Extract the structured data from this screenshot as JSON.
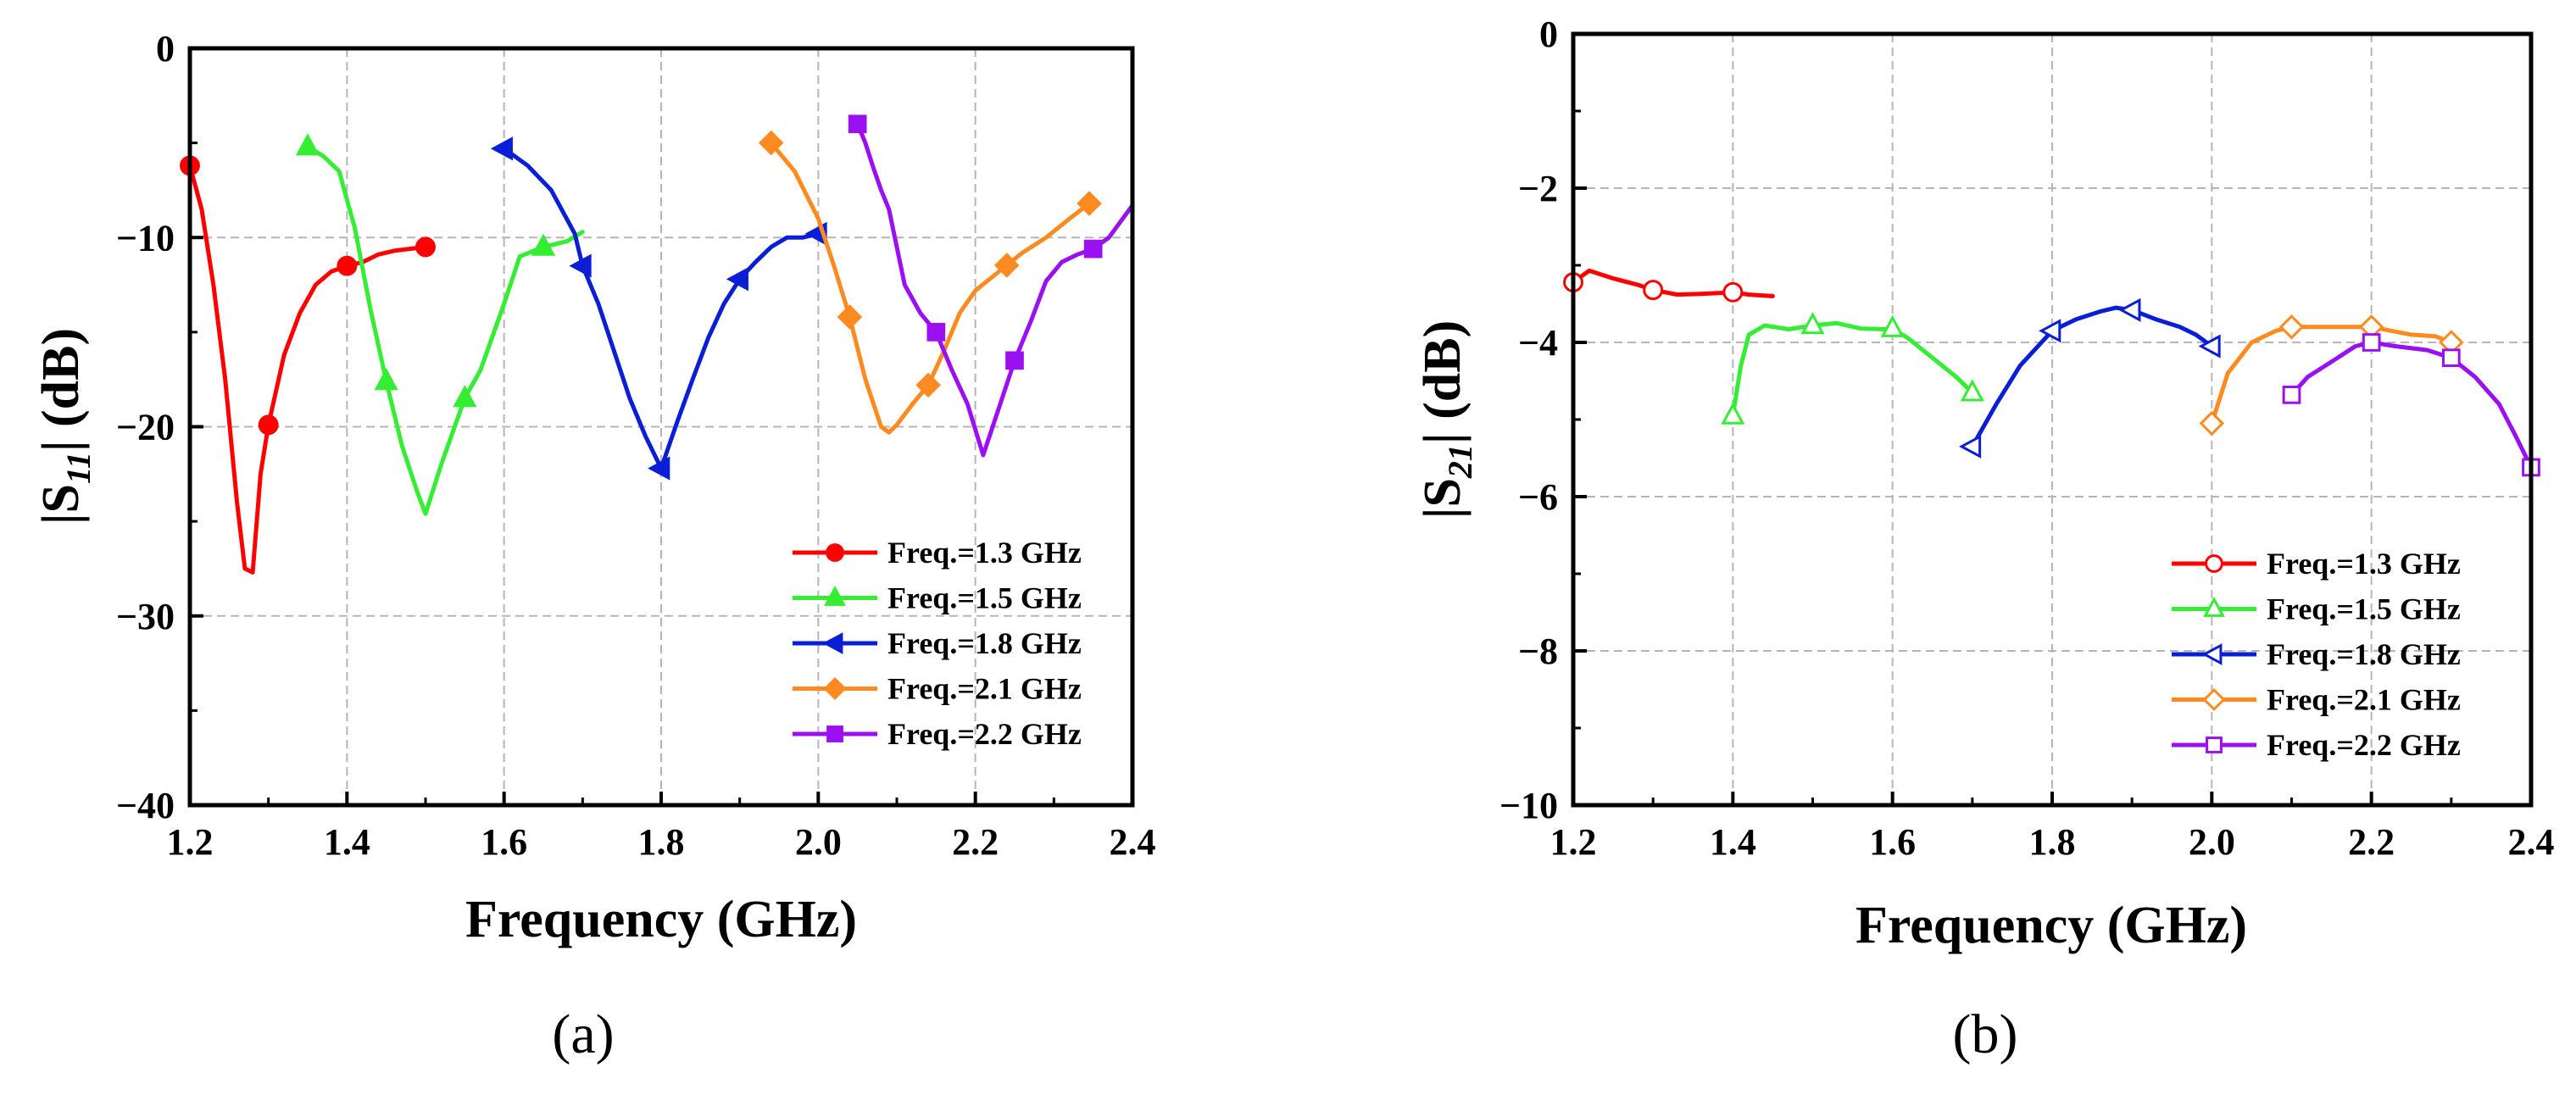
{
  "figure": {
    "legend_colors": {
      "f13": "#ff0000",
      "f15": "#33ee33",
      "f18": "#0a1ed6",
      "f21": "#ff8a1f",
      "f22": "#9a10f0"
    }
  },
  "chart_data": [
    {
      "type": "line",
      "panel_label": "(a)",
      "xlabel": "Frequency (GHz)",
      "ylabel": "|S11| (dB)",
      "ylabel_parts": {
        "pre": "|S",
        "sub": "11",
        "post": "| (dB)"
      },
      "xlim": [
        1.2,
        2.4
      ],
      "ylim": [
        -40,
        0
      ],
      "xticks": [
        1.2,
        1.4,
        1.6,
        1.8,
        2.0,
        2.2,
        2.4
      ],
      "xtick_labels": [
        "1.2",
        "1.4",
        "1.6",
        "1.8",
        "2.0",
        "2.2",
        "2.4"
      ],
      "yticks": [
        0,
        -10,
        -20,
        -30,
        -40
      ],
      "ytick_labels": [
        "0",
        "−10",
        "−20",
        "−30",
        "−40"
      ],
      "grid": true,
      "legend_position": "bottom-right",
      "series": [
        {
          "name": "Freq.=1.3 GHz",
          "color": "#ff0000",
          "marker": "circle",
          "filled": true,
          "x": [
            1.2,
            1.215,
            1.23,
            1.245,
            1.26,
            1.27,
            1.28,
            1.29,
            1.3,
            1.32,
            1.34,
            1.36,
            1.38,
            1.4,
            1.42,
            1.44,
            1.46,
            1.48,
            1.5
          ],
          "y": [
            -6.2,
            -8.5,
            -12.5,
            -17.5,
            -24,
            -27.5,
            -27.7,
            -22.5,
            -19.9,
            -16.2,
            -14,
            -12.5,
            -11.8,
            -11.5,
            -11.3,
            -10.9,
            -10.7,
            -10.6,
            -10.5
          ],
          "markers_x": [
            1.2,
            1.3,
            1.4,
            1.5
          ]
        },
        {
          "name": "Freq.=1.5 GHz",
          "color": "#33ee33",
          "marker": "triangle",
          "filled": true,
          "x": [
            1.35,
            1.37,
            1.39,
            1.41,
            1.43,
            1.45,
            1.47,
            1.49,
            1.5,
            1.52,
            1.55,
            1.57,
            1.6,
            1.62,
            1.65,
            1.68,
            1.7
          ],
          "y": [
            -5.2,
            -5.7,
            -6.5,
            -9.5,
            -13.8,
            -17.6,
            -21,
            -23.5,
            -24.6,
            -22,
            -18.5,
            -17,
            -13.5,
            -11,
            -10.5,
            -10.2,
            -9.7
          ],
          "markers_x": [
            1.35,
            1.45,
            1.55,
            1.65
          ]
        },
        {
          "name": "Freq.=1.8 GHz",
          "color": "#0a1ed6",
          "marker": "triangle-left",
          "filled": true,
          "x": [
            1.6,
            1.63,
            1.66,
            1.69,
            1.7,
            1.72,
            1.74,
            1.76,
            1.78,
            1.8,
            1.82,
            1.84,
            1.86,
            1.88,
            1.9,
            1.92,
            1.94,
            1.96,
            1.98,
            2.0
          ],
          "y": [
            -5.3,
            -6.2,
            -7.5,
            -9.8,
            -11.5,
            -13.5,
            -16,
            -18.5,
            -20.5,
            -22.2,
            -19.8,
            -17.5,
            -15.3,
            -13.5,
            -12.2,
            -11.3,
            -10.5,
            -10,
            -10,
            -9.8
          ],
          "markers_x": [
            1.6,
            1.7,
            1.8,
            1.9,
            2.0
          ]
        },
        {
          "name": "Freq.=2.1 GHz",
          "color": "#ff8a1f",
          "marker": "diamond",
          "filled": true,
          "x": [
            1.94,
            1.97,
            2.0,
            2.02,
            2.04,
            2.06,
            2.08,
            2.09,
            2.1,
            2.12,
            2.14,
            2.16,
            2.18,
            2.2,
            2.23,
            2.26,
            2.29,
            2.32,
            2.345
          ],
          "y": [
            -5,
            -6.5,
            -9,
            -11.5,
            -14.2,
            -17.5,
            -20,
            -20.3,
            -19.9,
            -18.8,
            -17.8,
            -16,
            -14,
            -12.8,
            -11.8,
            -10.8,
            -10,
            -9,
            -8.2
          ],
          "markers_x": [
            1.94,
            2.04,
            2.14,
            2.24,
            2.345
          ]
        },
        {
          "name": "Freq.=2.2 GHz",
          "color": "#9a10f0",
          "marker": "square",
          "filled": true,
          "x": [
            2.05,
            2.06,
            2.07,
            2.08,
            2.09,
            2.1,
            2.11,
            2.13,
            2.15,
            2.17,
            2.19,
            2.21,
            2.23,
            2.25,
            2.27,
            2.29,
            2.31,
            2.33,
            2.35,
            2.37,
            2.4
          ],
          "y": [
            -4,
            -5,
            -6.3,
            -7.5,
            -8.5,
            -10.5,
            -12.5,
            -14,
            -15,
            -17,
            -18.8,
            -21.5,
            -19,
            -16.5,
            -14.5,
            -12.3,
            -11.3,
            -10.9,
            -10.6,
            -10,
            -8.3
          ],
          "markers_x": [
            2.05,
            2.15,
            2.25,
            2.35
          ]
        }
      ]
    },
    {
      "type": "line",
      "panel_label": "(b)",
      "xlabel": "Frequency (GHz)",
      "ylabel": "|S21| (dB)",
      "ylabel_parts": {
        "pre": "|S",
        "sub": "21",
        "post": "| (dB)"
      },
      "xlim": [
        1.2,
        2.4
      ],
      "ylim": [
        -10,
        0
      ],
      "xticks": [
        1.2,
        1.4,
        1.6,
        1.8,
        2.0,
        2.2,
        2.4
      ],
      "xtick_labels": [
        "1.2",
        "1.4",
        "1.6",
        "1.8",
        "2.0",
        "2.2",
        "2.4"
      ],
      "yticks": [
        0,
        -2,
        -4,
        -6,
        -8,
        -10
      ],
      "ytick_labels": [
        "0",
        "−2",
        "−4",
        "−6",
        "−8",
        "−10"
      ],
      "grid": true,
      "legend_position": "bottom-right",
      "series": [
        {
          "name": "Freq.=1.3 GHz",
          "color": "#ff0000",
          "marker": "circle",
          "filled": false,
          "x": [
            1.2,
            1.22,
            1.25,
            1.28,
            1.3,
            1.33,
            1.36,
            1.4,
            1.42,
            1.45
          ],
          "y": [
            -3.22,
            -3.07,
            -3.17,
            -3.25,
            -3.32,
            -3.38,
            -3.37,
            -3.35,
            -3.38,
            -3.4
          ],
          "markers_x": [
            1.2,
            1.3,
            1.4
          ]
        },
        {
          "name": "Freq.=1.5 GHz",
          "color": "#33ee33",
          "marker": "triangle",
          "filled": false,
          "x": [
            1.4,
            1.41,
            1.42,
            1.44,
            1.47,
            1.5,
            1.53,
            1.56,
            1.59,
            1.6,
            1.62,
            1.65,
            1.68,
            1.7
          ],
          "y": [
            -4.95,
            -4.3,
            -3.9,
            -3.78,
            -3.83,
            -3.78,
            -3.75,
            -3.82,
            -3.83,
            -3.82,
            -3.95,
            -4.2,
            -4.45,
            -4.65
          ],
          "markers_x": [
            1.4,
            1.5,
            1.6,
            1.7
          ]
        },
        {
          "name": "Freq.=1.8 GHz",
          "color": "#0a1ed6",
          "marker": "triangle-left",
          "filled": false,
          "x": [
            1.7,
            1.73,
            1.76,
            1.8,
            1.83,
            1.86,
            1.88,
            1.9,
            1.93,
            1.96,
            1.98,
            2.0
          ],
          "y": [
            -5.35,
            -4.8,
            -4.3,
            -3.85,
            -3.7,
            -3.6,
            -3.55,
            -3.58,
            -3.7,
            -3.8,
            -3.9,
            -4.05
          ],
          "markers_x": [
            1.7,
            1.8,
            1.9,
            2.0
          ]
        },
        {
          "name": "Freq.=2.1 GHz",
          "color": "#ff8a1f",
          "marker": "diamond",
          "filled": false,
          "x": [
            2.0,
            2.02,
            2.05,
            2.08,
            2.1,
            2.15,
            2.2,
            2.25,
            2.28,
            2.3
          ],
          "y": [
            -5.05,
            -4.4,
            -4,
            -3.85,
            -3.8,
            -3.8,
            -3.8,
            -3.9,
            -3.92,
            -4
          ],
          "markers_x": [
            2.0,
            2.1,
            2.2,
            2.3
          ]
        },
        {
          "name": "Freq.=2.2 GHz",
          "color": "#9a10f0",
          "marker": "square",
          "filled": false,
          "x": [
            2.1,
            2.12,
            2.15,
            2.18,
            2.2,
            2.23,
            2.27,
            2.3,
            2.33,
            2.36,
            2.38,
            2.4
          ],
          "y": [
            -4.68,
            -4.45,
            -4.25,
            -4.05,
            -4,
            -4.05,
            -4.1,
            -4.2,
            -4.45,
            -4.8,
            -5.2,
            -5.62
          ],
          "markers_x": [
            2.1,
            2.2,
            2.3,
            2.4
          ]
        }
      ]
    }
  ]
}
